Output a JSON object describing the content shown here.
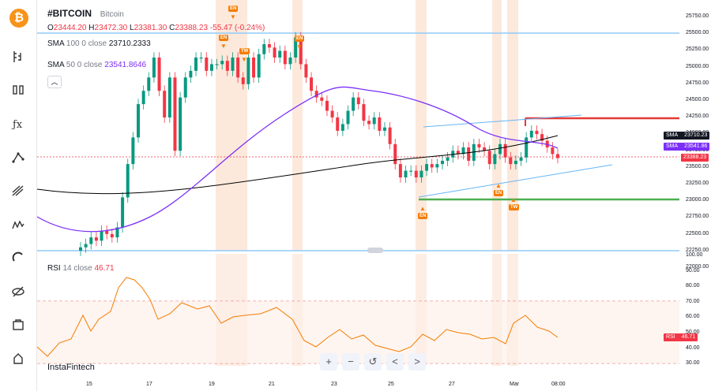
{
  "symbol": {
    "ticker": "#BITCOIN",
    "name": "Bitcoin"
  },
  "ohlc": {
    "o_label": "O",
    "o": "23444.20",
    "h_label": "H",
    "h": "23472.30",
    "l_label": "L",
    "l": "23381.30",
    "c_label": "C",
    "c": "23388.23",
    "change": "-55.47 (-0.24%)"
  },
  "sma100": {
    "label": "SMA",
    "params": "100 0 close",
    "value": "23710.2333"
  },
  "sma50": {
    "label": "SMA",
    "params": "50 0 close",
    "value": "23541.8646"
  },
  "rsi": {
    "label": "RSI",
    "params": "14 close",
    "value": "46.71"
  },
  "price_axis": [
    "25750.00",
    "25500.00",
    "25250.00",
    "25000.00",
    "24750.00",
    "24500.00",
    "24250.00",
    "24000.00",
    "23750.00",
    "23500.00",
    "23250.00",
    "23000.00",
    "22750.00",
    "22500.00",
    "22250.00",
    "22000.00"
  ],
  "rsi_axis": [
    "100.00",
    "90.00",
    "80.00",
    "70.00",
    "60.00",
    "50.00",
    "40.00",
    "30.00"
  ],
  "price_labels": {
    "sma100_tag": "SMA",
    "sma100_val": "23710.23",
    "sma50_tag": "SMA",
    "sma50_val": "23541.86",
    "current": "23388.23",
    "rsi_tag": "RSI",
    "rsi_val": "46.71"
  },
  "x_axis": [
    "15",
    "17",
    "19",
    "21",
    "23",
    "25",
    "27",
    "Mar",
    "08:00"
  ],
  "watermark": "InstaFintech",
  "zoom": [
    "+",
    "−",
    "↺",
    "<",
    ">"
  ],
  "markers": {
    "en": "EN",
    "tw": "TW"
  },
  "colors": {
    "up": "#089981",
    "down": "#f23645",
    "sma50": "#7b2ff7",
    "sma100": "#000000",
    "rsi": "#f57c00",
    "resistance": "#e53935",
    "support": "#4caf50",
    "logo": "#f7931a"
  },
  "sidebar_icons": [
    "bitcoin-logo",
    "chart-type-icon",
    "compare-icon",
    "indicators-icon",
    "drawing-icon",
    "fib-icon",
    "patterns-icon",
    "magnet-icon",
    "hide-icon",
    "screenshot-icon",
    "settings-icon"
  ]
}
